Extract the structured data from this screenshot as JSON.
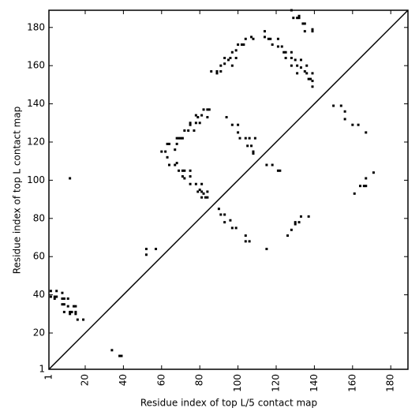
{
  "chart_data": {
    "type": "scatter",
    "xlabel": "Residue index of top L/5 contact map",
    "ylabel": "Residue index of top L contact map",
    "xlim": [
      1,
      189
    ],
    "ylim": [
      1,
      189
    ],
    "xticks": [
      1,
      20,
      40,
      60,
      80,
      100,
      120,
      140,
      160,
      180
    ],
    "yticks": [
      1,
      20,
      40,
      60,
      80,
      100,
      120,
      140,
      160,
      180
    ],
    "color": "#000000",
    "marker": "square",
    "diagonal": true,
    "grid": false,
    "x": [
      2,
      2,
      4,
      4,
      5,
      5,
      8,
      8,
      8,
      9,
      9,
      9,
      11,
      11,
      12,
      12,
      13,
      14,
      15,
      15,
      15,
      16,
      19,
      12,
      34,
      38,
      39,
      52,
      52,
      57,
      60,
      62,
      63,
      64,
      63,
      64,
      67,
      67,
      68,
      68,
      69,
      70,
      71,
      68,
      69,
      71,
      72,
      71,
      72,
      75,
      75,
      75,
      78,
      79,
      80,
      81,
      81,
      81,
      82,
      83,
      84,
      84,
      72,
      74,
      75,
      75,
      77,
      78,
      78,
      79,
      80,
      81,
      82,
      84,
      85,
      84,
      86,
      89,
      89,
      91,
      91,
      93,
      93,
      95,
      96,
      97,
      97,
      99,
      99,
      100,
      102,
      103,
      104,
      107,
      108,
      114,
      114,
      116,
      117,
      118,
      121,
      121,
      123,
      124,
      125,
      125,
      128,
      128,
      128,
      130,
      131,
      131,
      133,
      133,
      135,
      136,
      136,
      137,
      138,
      139,
      139,
      139,
      128,
      129,
      131,
      132,
      134,
      135,
      135,
      139,
      139,
      132,
      94,
      97,
      100,
      100,
      101,
      104,
      105,
      106,
      107,
      108,
      108,
      109,
      115,
      118,
      121,
      122,
      90,
      91,
      93,
      93,
      96,
      97,
      99,
      104,
      104,
      106,
      115,
      126,
      128,
      130,
      130,
      132,
      133,
      137,
      150,
      154,
      156,
      156,
      160,
      163,
      167,
      171,
      161,
      164,
      166,
      167,
      167
    ],
    "y": [
      39,
      42,
      39,
      38,
      42,
      39,
      41,
      38,
      35,
      38,
      35,
      31,
      34,
      38,
      31,
      30,
      31,
      34,
      34,
      31,
      30,
      27,
      27,
      101,
      11,
      8,
      8,
      61,
      64,
      64,
      115,
      115,
      119,
      119,
      112,
      108,
      108,
      116,
      119,
      122,
      122,
      122,
      122,
      109,
      105,
      105,
      105,
      102,
      101,
      105,
      102,
      98,
      98,
      94,
      95,
      98,
      94,
      91,
      93,
      91,
      91,
      94,
      126,
      126,
      129,
      130,
      126,
      130,
      134,
      133,
      130,
      134,
      137,
      137,
      137,
      133,
      157,
      157,
      156,
      160,
      157,
      161,
      164,
      163,
      164,
      167,
      160,
      164,
      168,
      171,
      171,
      171,
      174,
      175,
      174,
      178,
      175,
      174,
      174,
      171,
      174,
      170,
      170,
      167,
      167,
      164,
      167,
      164,
      160,
      163,
      160,
      156,
      163,
      159,
      157,
      156,
      160,
      153,
      153,
      152,
      156,
      149,
      189,
      185,
      185,
      186,
      182,
      182,
      178,
      179,
      178,
      185,
      133,
      129,
      129,
      125,
      122,
      122,
      118,
      122,
      118,
      115,
      114,
      122,
      108,
      108,
      105,
      105,
      85,
      82,
      82,
      78,
      79,
      75,
      75,
      71,
      68,
      68,
      64,
      71,
      74,
      78,
      77,
      78,
      81,
      81,
      139,
      139,
      136,
      132,
      129,
      129,
      125,
      104,
      93,
      97,
      97,
      101,
      97
    ]
  }
}
